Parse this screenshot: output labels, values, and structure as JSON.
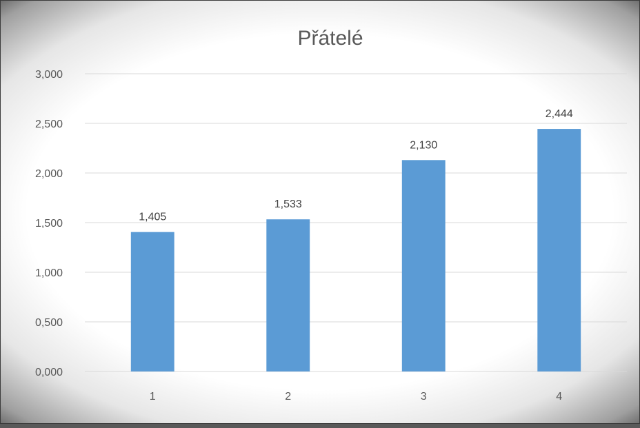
{
  "chart_data": {
    "type": "bar",
    "title": "Přátelé",
    "xlabel": "",
    "ylabel": "",
    "categories": [
      "1",
      "2",
      "3",
      "4"
    ],
    "values": [
      1.405,
      1.533,
      2.13,
      2.444
    ],
    "data_labels": [
      "1,405",
      "1,533",
      "2,130",
      "2,444"
    ],
    "y_ticks": [
      "0,000",
      "0,500",
      "1,000",
      "1,500",
      "2,000",
      "2,500",
      "3,000"
    ],
    "ylim": [
      0,
      3
    ],
    "grid": true,
    "legend": "none",
    "colors": {
      "bar": "#5b9bd5",
      "grid": "#d9d9d9",
      "text": "#595959"
    }
  }
}
